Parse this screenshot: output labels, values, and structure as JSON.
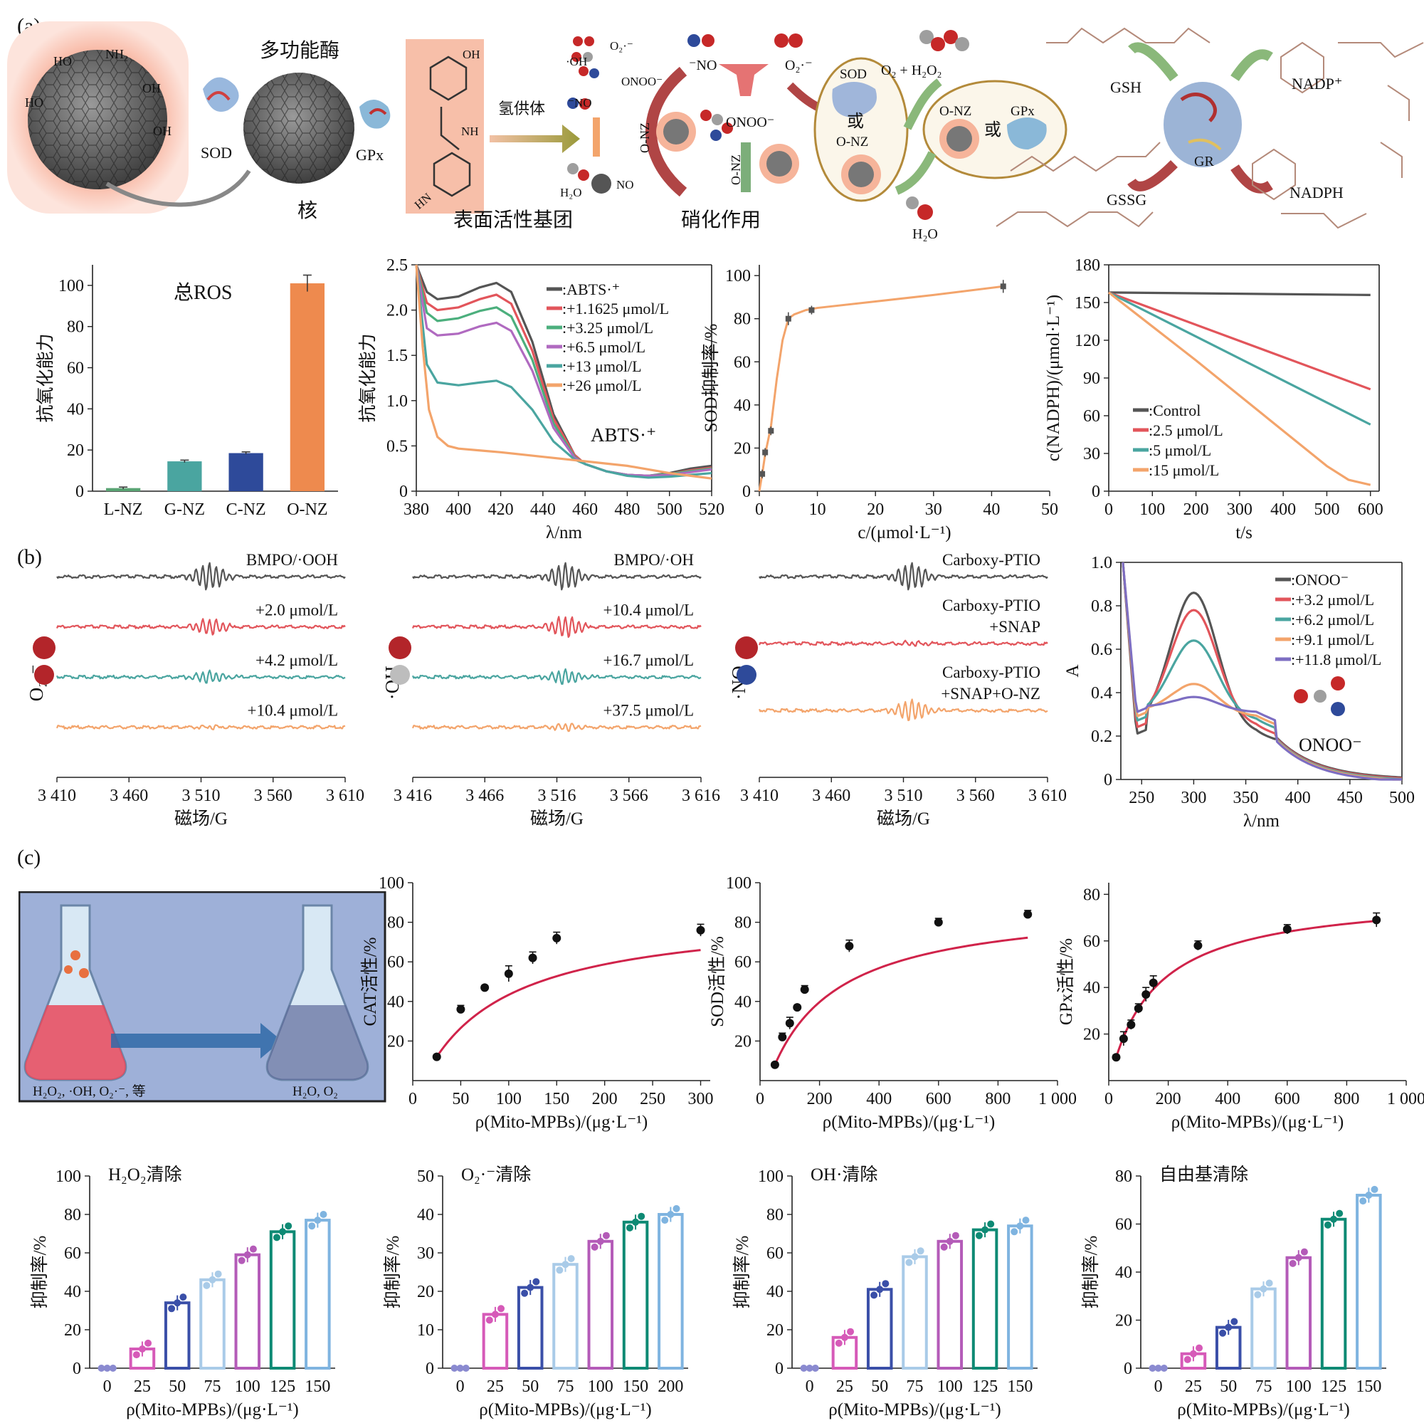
{
  "panel_labels": [
    "(a)",
    "(b)",
    "(c)"
  ],
  "schematic": {
    "title_multi": "多功能酶",
    "core": "核",
    "surface": "表面活性基团",
    "nitration": "硝化作用",
    "sod": "SOD",
    "gpx": "GPx",
    "hdonor": "氢供体",
    "no": "⁻NO",
    "o2r": "O₂·⁻",
    "o2h2o2": "O₂ + H₂O₂",
    "onoo": "ONOO⁻",
    "onz": "O-NZ",
    "sod2": "SOD",
    "or1": "或",
    "or2": "或",
    "onz_b": "O-NZ",
    "onz2": "O-NZ",
    "gpx2": "GPx",
    "gsh": "GSH",
    "gssg": "GSSG",
    "gr": "GR",
    "nadp": "NADP⁺",
    "nadph": "NADPH",
    "h2o": "H₂O",
    "h2o_no": "H₂O",
    "no2": "NO",
    "oh": "·OH",
    "o2m": "O₂·⁻",
    "onoo_s": "ONOO⁻",
    "no_s": "⁻NO",
    "ho": "HO",
    "oh2": "OH",
    "nh2": "NH₂",
    "nh": "HN",
    "nhb": "NH"
  },
  "colors": {
    "gray": "#555555",
    "red": "#e2555b",
    "teal": "#4aa5a0",
    "purple": "#b06ac0",
    "orange": "#f3a46b",
    "violet": "#7d6ec2",
    "blue": "#2e4a9a",
    "crimson": "#d0234a"
  },
  "chart_data": [
    {
      "id": "ros",
      "type": "bar",
      "title": "总ROS",
      "ylabel": "抗氧化能力",
      "categories": [
        "L-NZ",
        "G-NZ",
        "C-NZ",
        "O-NZ"
      ],
      "values": [
        1.5,
        14.5,
        18.5,
        101
      ],
      "errors": [
        0.5,
        0.6,
        0.6,
        4
      ],
      "colors": [
        "#5aa574",
        "#4aa5a0",
        "#2e4a9a",
        "#ee8a4e"
      ],
      "ylim": [
        0,
        110
      ],
      "yticks": [
        0,
        20,
        40,
        60,
        80,
        100
      ]
    },
    {
      "id": "abts",
      "type": "line",
      "annotation": "ABTS·⁺",
      "ylabel": "抗氧化能力",
      "xlabel": "λ/nm",
      "xlim": [
        380,
        520
      ],
      "ylim": [
        0,
        2.5
      ],
      "xticks": [
        380,
        400,
        420,
        440,
        460,
        480,
        500,
        520
      ],
      "yticks": [
        0,
        0.5,
        1.0,
        1.5,
        2.0,
        2.5
      ],
      "ytick_labels": [
        "0",
        "0.5",
        "1.0",
        "1.5",
        "2.0",
        "2.5"
      ],
      "series": [
        {
          "name": ":ABTS·⁺",
          "color": "#555555",
          "x": [
            380,
            385,
            390,
            400,
            410,
            418,
            425,
            435,
            445,
            455,
            460,
            470,
            480,
            490,
            500,
            510,
            520
          ],
          "y": [
            2.5,
            2.2,
            2.12,
            2.15,
            2.25,
            2.3,
            2.2,
            1.65,
            0.85,
            0.4,
            0.3,
            0.22,
            0.18,
            0.17,
            0.2,
            0.25,
            0.28
          ]
        },
        {
          "name": ":+1.1625 μmol/L",
          "color": "#e2555b",
          "x": [
            380,
            385,
            390,
            400,
            410,
            418,
            425,
            435,
            445,
            455,
            460,
            470,
            480,
            490,
            500,
            510,
            520
          ],
          "y": [
            2.5,
            2.08,
            2.0,
            2.03,
            2.12,
            2.17,
            2.07,
            1.55,
            0.8,
            0.4,
            0.3,
            0.22,
            0.18,
            0.17,
            0.19,
            0.23,
            0.26
          ]
        },
        {
          "name": ":+3.25 μmol/L",
          "color": "#4caf7d",
          "x": [
            380,
            385,
            390,
            400,
            410,
            418,
            425,
            435,
            445,
            455,
            460,
            470,
            480,
            490,
            500,
            510,
            520
          ],
          "y": [
            2.5,
            1.97,
            1.88,
            1.91,
            1.99,
            2.03,
            1.93,
            1.45,
            0.75,
            0.38,
            0.3,
            0.22,
            0.18,
            0.17,
            0.19,
            0.22,
            0.25
          ]
        },
        {
          "name": ":+6.5 μmol/L",
          "color": "#b06ac0",
          "x": [
            380,
            385,
            390,
            400,
            410,
            418,
            425,
            435,
            445,
            455,
            460,
            470,
            480,
            490,
            500,
            510,
            520
          ],
          "y": [
            2.5,
            1.8,
            1.72,
            1.74,
            1.82,
            1.86,
            1.77,
            1.33,
            0.7,
            0.37,
            0.3,
            0.22,
            0.18,
            0.17,
            0.18,
            0.21,
            0.24
          ]
        },
        {
          "name": ":+13 μmol/L",
          "color": "#4aa5a0",
          "x": [
            380,
            385,
            390,
            400,
            410,
            418,
            425,
            435,
            445,
            455,
            460,
            470,
            480,
            490,
            500,
            510,
            520
          ],
          "y": [
            2.5,
            1.4,
            1.2,
            1.17,
            1.2,
            1.22,
            1.15,
            0.9,
            0.55,
            0.35,
            0.3,
            0.22,
            0.17,
            0.15,
            0.16,
            0.18,
            0.2
          ]
        },
        {
          "name": ":+26 μmol/L",
          "color": "#f3a46b",
          "x": [
            380,
            383,
            386,
            390,
            395,
            400,
            410,
            420,
            440,
            460,
            480,
            500,
            510,
            520
          ],
          "y": [
            2.5,
            1.6,
            0.9,
            0.6,
            0.5,
            0.47,
            0.45,
            0.43,
            0.38,
            0.33,
            0.28,
            0.2,
            0.17,
            0.14
          ]
        }
      ],
      "legend_position": "top-right"
    },
    {
      "id": "sod",
      "type": "line",
      "ylabel": "SOD抑制率/%",
      "xlabel": "c/(μmol·L⁻¹)",
      "xlim": [
        0,
        50
      ],
      "ylim": [
        0,
        105
      ],
      "xticks": [
        0,
        10,
        20,
        30,
        40,
        50
      ],
      "yticks": [
        0,
        20,
        40,
        60,
        80,
        100
      ],
      "points": {
        "x": [
          0.5,
          1,
          2,
          5,
          9,
          42
        ],
        "y": [
          8,
          18,
          28,
          80,
          84,
          95
        ],
        "err": [
          2,
          2,
          2,
          3,
          2,
          3
        ]
      },
      "curve": {
        "x": [
          0,
          0.5,
          1,
          2,
          3,
          4,
          5,
          6,
          8,
          10,
          20,
          30,
          42
        ],
        "y": [
          0,
          8,
          17,
          30,
          52,
          70,
          80,
          82,
          84,
          85,
          88,
          91,
          95
        ]
      }
    },
    {
      "id": "nadph",
      "type": "line",
      "ylabel": "c(NADPH)/(μmol·L⁻¹)",
      "xlabel": "t/s",
      "xlim": [
        0,
        620
      ],
      "ylim": [
        0,
        180
      ],
      "xticks": [
        0,
        100,
        200,
        300,
        400,
        500,
        600
      ],
      "yticks": [
        0,
        30,
        60,
        90,
        120,
        150,
        180
      ],
      "series": [
        {
          "name": ":Control",
          "color": "#555555",
          "x": [
            0,
            600
          ],
          "y": [
            158,
            156
          ]
        },
        {
          "name": ":2.5 μmol/L",
          "color": "#e2555b",
          "x": [
            0,
            600
          ],
          "y": [
            158,
            81
          ]
        },
        {
          "name": ":5 μmol/L",
          "color": "#4aa5a0",
          "x": [
            0,
            600
          ],
          "y": [
            158,
            53
          ]
        },
        {
          "name": ":15 μmol/L",
          "color": "#f3a46b",
          "x": [
            0,
            100,
            200,
            300,
            400,
            500,
            550,
            600
          ],
          "y": [
            158,
            131,
            104,
            76,
            48,
            20,
            9,
            5
          ]
        }
      ],
      "legend_position": "bottom-left"
    },
    {
      "id": "epr1",
      "type": "line",
      "xlabel": "磁场/G",
      "ylabel": "O₂·⁻",
      "xticks": [
        3410,
        3460,
        3510,
        3560,
        3610
      ],
      "xtick_labels": [
        "3 410",
        "3 460",
        "3 510",
        "3 560",
        "3 610"
      ],
      "traces": [
        {
          "label": "BMPO/·OOH",
          "color": "#555555",
          "amp": 1.0
        },
        {
          "label": "+2.0 μmol/L",
          "color": "#e2555b",
          "amp": 0.6
        },
        {
          "label": "+4.2 μmol/L",
          "color": "#4aa5a0",
          "amp": 0.45
        },
        {
          "label": "+10.4 μmol/L",
          "color": "#f3a46b",
          "amp": 0.15
        }
      ]
    },
    {
      "id": "epr2",
      "type": "line",
      "xlabel": "磁场/G",
      "ylabel": "·OH",
      "xticks": [
        3416,
        3466,
        3516,
        3566,
        3616
      ],
      "xtick_labels": [
        "3 416",
        "3 466",
        "3 516",
        "3 566",
        "3 616"
      ],
      "traces": [
        {
          "label": "BMPO/·OH",
          "color": "#555555",
          "amp": 1.0
        },
        {
          "label": "+10.4 μmol/L",
          "color": "#e2555b",
          "amp": 0.8
        },
        {
          "label": "+16.7 μmol/L",
          "color": "#4aa5a0",
          "amp": 0.55
        },
        {
          "label": "+37.5 μmol/L",
          "color": "#f3a46b",
          "amp": 0.3
        }
      ]
    },
    {
      "id": "epr3",
      "type": "line",
      "xlabel": "磁场/G",
      "ylabel": "·NO",
      "xticks": [
        3410,
        3460,
        3510,
        3560,
        3610
      ],
      "xtick_labels": [
        "3 410",
        "3 460",
        "3 510",
        "3 560",
        "3 610"
      ],
      "traces": [
        {
          "label": "Carboxy-PTIO",
          "color": "#555555",
          "amp": 1.0
        },
        {
          "label": "Carboxy-PTIO\n+SNAP",
          "color": "#e2555b",
          "amp": 0.15
        },
        {
          "label": "Carboxy-PTIO\n+SNAP+O-NZ",
          "color": "#f3a46b",
          "amp": 0.8
        }
      ]
    },
    {
      "id": "onoo",
      "type": "line",
      "annotation": "ONOO⁻",
      "ylabel": "A",
      "xlabel": "λ/nm",
      "xlim": [
        230,
        500
      ],
      "ylim": [
        0,
        1.0
      ],
      "xticks": [
        250,
        300,
        350,
        400,
        450,
        500
      ],
      "yticks": [
        0,
        0.2,
        0.4,
        0.6,
        0.8,
        1.0
      ],
      "ytick_labels": [
        "0",
        "0.2",
        "0.4",
        "0.6",
        "0.8",
        "1.0"
      ],
      "series": [
        {
          "name": ":ONOO⁻",
          "color": "#555555",
          "peak": 0.86,
          "min": 0.21
        },
        {
          "name": ":+3.2 μmol/L",
          "color": "#e2555b",
          "peak": 0.78,
          "min": 0.24
        },
        {
          "name": ":+6.2 μmol/L",
          "color": "#4aa5a0",
          "peak": 0.64,
          "min": 0.27
        },
        {
          "name": ":+9.1 μmol/L",
          "color": "#f3a46b",
          "peak": 0.44,
          "min": 0.29
        },
        {
          "name": ":+11.8 μmol/L",
          "color": "#7d6ec2",
          "peak": 0.38,
          "min": 0.31
        }
      ],
      "legend_position": "top-right"
    },
    {
      "id": "cat",
      "type": "scatter",
      "ylabel": "CAT活性/%",
      "xlabel": "ρ(Mito-MPBs)/(μg·L⁻¹)",
      "xlim": [
        0,
        310
      ],
      "ylim": [
        0,
        100
      ],
      "xticks": [
        0,
        50,
        100,
        150,
        200,
        250,
        300
      ],
      "yticks": [
        20,
        40,
        60,
        80,
        100
      ],
      "x": [
        25,
        50,
        75,
        100,
        125,
        150,
        300
      ],
      "y": [
        12,
        36,
        47,
        54,
        62,
        72,
        76
      ],
      "err": [
        1,
        2,
        1,
        4,
        3,
        3,
        3
      ],
      "fit": {
        "vmax": 98,
        "km": 77
      }
    },
    {
      "id": "sodact",
      "type": "scatter",
      "ylabel": "SOD活性/%",
      "xlabel": "ρ(Mito-MPBs)/(μg·L⁻¹)",
      "xlim": [
        0,
        1000
      ],
      "ylim": [
        0,
        100
      ],
      "xticks": [
        0,
        200,
        400,
        600,
        800,
        1000
      ],
      "xtick_labels": [
        "0",
        "200",
        "400",
        "600",
        "800",
        "1 000"
      ],
      "yticks": [
        20,
        40,
        60,
        80,
        100
      ],
      "x": [
        50,
        75,
        100,
        125,
        150,
        300,
        600,
        900
      ],
      "y": [
        8,
        22,
        29,
        37,
        46,
        68,
        80,
        84
      ],
      "err": [
        1,
        2,
        3,
        1,
        2,
        3,
        2,
        2
      ],
      "fit": {
        "vmax": 104,
        "km": 190
      }
    },
    {
      "id": "gpx",
      "type": "scatter",
      "ylabel": "GPx活性/%",
      "xlabel": "ρ(Mito-MPBs)/(μg·L⁻¹)",
      "xlim": [
        0,
        1000
      ],
      "ylim": [
        0,
        85
      ],
      "xticks": [
        0,
        200,
        400,
        600,
        800,
        1000
      ],
      "xtick_labels": [
        "0",
        "200",
        "400",
        "600",
        "800",
        "1 000"
      ],
      "yticks": [
        20,
        40,
        60,
        80
      ],
      "x": [
        25,
        50,
        75,
        100,
        125,
        150,
        300,
        600,
        900
      ],
      "y": [
        10,
        18,
        24,
        31,
        37,
        42,
        58,
        65,
        69
      ],
      "err": [
        1,
        3,
        2,
        2,
        3,
        3,
        2,
        2,
        3
      ],
      "fit": {
        "vmax": 82,
        "km": 150
      }
    },
    {
      "id": "h2o2",
      "type": "bar",
      "title": "H₂O₂清除",
      "ylabel": "抑制率/%",
      "xlabel": "ρ(Mito-MPBs)/(μg·L⁻¹)",
      "categories": [
        "0",
        "25",
        "50",
        "75",
        "100",
        "125",
        "150"
      ],
      "values": [
        0,
        10,
        34,
        46,
        59,
        71,
        77
      ],
      "ylim": [
        0,
        100
      ],
      "yticks": [
        0,
        20,
        40,
        60,
        80,
        100
      ]
    },
    {
      "id": "o2s",
      "type": "bar",
      "title": "O₂·⁻清除",
      "ylabel": "抑制率/%",
      "xlabel": "ρ(Mito-MPBs)/(μg·L⁻¹)",
      "categories": [
        "0",
        "25",
        "50",
        "75",
        "100",
        "150",
        "200"
      ],
      "values": [
        0,
        14,
        21,
        27,
        33,
        38,
        40
      ],
      "ylim": [
        0,
        50
      ],
      "yticks": [
        0,
        10,
        20,
        30,
        40,
        50
      ]
    },
    {
      "id": "ohs",
      "type": "bar",
      "title": "OH·清除",
      "ylabel": "抑制率/%",
      "xlabel": "ρ(Mito-MPBs)/(μg·L⁻¹)",
      "categories": [
        "0",
        "25",
        "50",
        "75",
        "100",
        "125",
        "150"
      ],
      "values": [
        0,
        16,
        41,
        58,
        66,
        72,
        74
      ],
      "ylim": [
        0,
        100
      ],
      "yticks": [
        0,
        20,
        40,
        60,
        80,
        100
      ]
    },
    {
      "id": "rad",
      "type": "bar",
      "title": "自由基清除",
      "ylabel": "抑制率/%",
      "xlabel": "ρ(Mito-MPBs)/(μg·L⁻¹)",
      "categories": [
        "0",
        "25",
        "50",
        "75",
        "100",
        "125",
        "150"
      ],
      "values": [
        0,
        6,
        17,
        33,
        46,
        62,
        72
      ],
      "ylim": [
        0,
        80
      ],
      "yticks": [
        0,
        20,
        40,
        60,
        80
      ]
    }
  ],
  "flask": {
    "left_label": "H₂O₂, ·OH, O₂·⁻, 等",
    "right_label": "H₂O, O₂"
  },
  "bar_palette": [
    "#8a8ad0",
    "#d65ab8",
    "#3a4fa8",
    "#a9cbe8",
    "#b45bb8",
    "#0e8a74",
    "#7fb4e0"
  ]
}
